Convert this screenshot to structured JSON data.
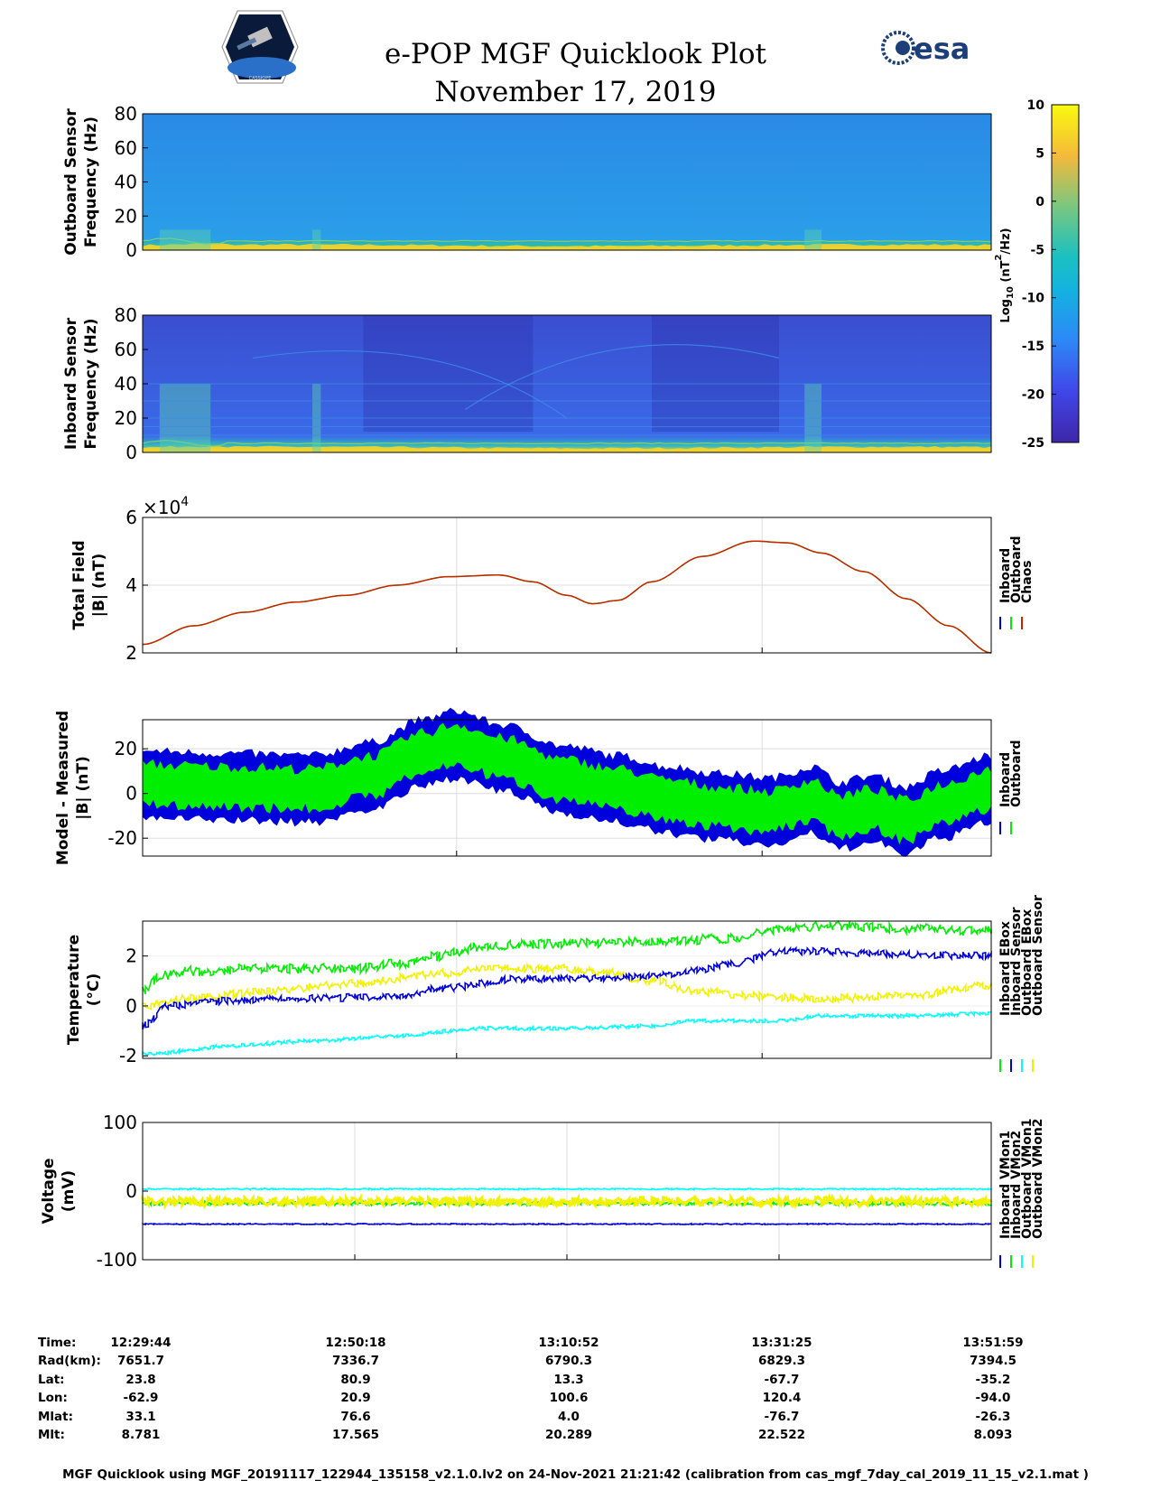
{
  "header": {
    "title": "e-POP MGF Quicklook Plot",
    "date": "November 17, 2019",
    "mission_logo": "CASSIOPE",
    "agency_logo": "esa"
  },
  "colors": {
    "inboard": "#0000dd",
    "outboard": "#00ee00",
    "chaos": "#cc2200",
    "yellow": "#f2f200",
    "cyan": "#00ffff"
  },
  "chart_data": [
    {
      "type": "heatmap",
      "name": "outboard-spectrogram",
      "ylabel": [
        "Outboard Sensor",
        "Frequency (Hz)"
      ],
      "ylim": [
        0,
        80
      ],
      "yticks": [
        "0",
        "20",
        "40",
        "60",
        "80"
      ]
    },
    {
      "type": "heatmap",
      "name": "inboard-spectrogram",
      "ylabel": [
        "Inboard Sensor",
        "Frequency (Hz)"
      ],
      "ylim": [
        0,
        80
      ],
      "yticks": [
        "0",
        "20",
        "40",
        "60",
        "80"
      ]
    },
    {
      "type": "colorbar",
      "label": "Log10 (nT^2/Hz)",
      "label_parts": [
        "Log",
        "10",
        " (nT",
        "2",
        "/Hz)"
      ],
      "ylim": [
        -25,
        10
      ],
      "ticks": [
        "10",
        "5",
        "0",
        "-5",
        "-10",
        "-15",
        "-20",
        "-25"
      ],
      "tick_values": [
        10,
        5,
        0,
        -5,
        -10,
        -15,
        -20,
        -25
      ]
    },
    {
      "type": "line",
      "name": "total-field",
      "ylabel": [
        "Total Field",
        "|B| (nT)"
      ],
      "exponent": "×10",
      "exponent_power": "4",
      "ylim": [
        2,
        6
      ],
      "yticks": [
        "2",
        "4",
        "6"
      ],
      "ytick_values": [
        2,
        4,
        6
      ],
      "x": [
        0,
        0.06,
        0.12,
        0.18,
        0.24,
        0.3,
        0.36,
        0.42,
        0.46,
        0.5,
        0.53,
        0.56,
        0.6,
        0.66,
        0.72,
        0.76,
        0.8,
        0.85,
        0.9,
        0.95,
        1.0
      ],
      "y": [
        2.25,
        2.8,
        3.2,
        3.5,
        3.7,
        4.0,
        4.25,
        4.3,
        4.1,
        3.7,
        3.45,
        3.55,
        4.1,
        4.85,
        5.3,
        5.25,
        4.95,
        4.4,
        3.6,
        2.8,
        2.0
      ],
      "legend": [
        "Inboard",
        "Outboard",
        "Chaos"
      ]
    },
    {
      "type": "line",
      "name": "model-minus-measured",
      "ylabel": [
        "Model - Measured",
        "|B| (nT)"
      ],
      "ylim": [
        -28,
        33
      ],
      "yticks": [
        "-20",
        "0",
        "20"
      ],
      "ytick_values": [
        -20,
        0,
        20
      ],
      "x": [
        0,
        0.1,
        0.2,
        0.27,
        0.33,
        0.37,
        0.42,
        0.5,
        0.56,
        0.62,
        0.68,
        0.74,
        0.79,
        0.82,
        0.86,
        0.9,
        0.94,
        1.0
      ],
      "center": [
        4,
        3,
        2,
        8,
        18,
        22,
        16,
        6,
        2,
        -3,
        -6,
        -8,
        -3,
        -10,
        -7,
        -12,
        -5,
        2
      ],
      "outboard_halfwidth": 9,
      "inboard_halfwidth": 15,
      "legend": [
        "Inboard",
        "Outboard"
      ]
    },
    {
      "type": "line",
      "name": "temperature",
      "ylabel": [
        "Temperature",
        "(°C)"
      ],
      "ylim": [
        -2.1,
        3.4
      ],
      "yticks": [
        "-2",
        "0",
        "2"
      ],
      "ytick_values": [
        -2,
        0,
        2
      ],
      "series": [
        {
          "name": "Inboard EBox",
          "color": "#00ee00",
          "x": [
            0,
            0.02,
            0.06,
            0.15,
            0.25,
            0.3,
            0.35,
            0.4,
            0.5,
            0.6,
            0.7,
            0.72,
            0.75,
            0.8,
            0.9,
            1.0
          ],
          "y": [
            0.6,
            1.2,
            1.4,
            1.5,
            1.5,
            1.7,
            2.0,
            2.4,
            2.5,
            2.6,
            2.7,
            2.9,
            3.1,
            3.2,
            3.1,
            3.0
          ]
        },
        {
          "name": "Inboard Sensor",
          "color": "#0000dd",
          "x": [
            0,
            0.03,
            0.1,
            0.2,
            0.3,
            0.35,
            0.45,
            0.55,
            0.6,
            0.65,
            0.7,
            0.75,
            1.0
          ],
          "y": [
            -0.8,
            0.0,
            0.2,
            0.3,
            0.4,
            0.7,
            1.1,
            1.1,
            1.2,
            1.4,
            1.7,
            2.2,
            2.0
          ]
        },
        {
          "name": "Outboard EBox",
          "color": "#00ffff",
          "x": [
            0,
            0.02,
            0.05,
            0.1,
            0.2,
            0.3,
            0.37,
            0.4,
            0.5,
            0.6,
            0.65,
            0.75,
            0.8,
            0.9,
            1.0
          ],
          "y": [
            -1.9,
            -1.9,
            -1.8,
            -1.6,
            -1.4,
            -1.2,
            -1.0,
            -0.9,
            -0.9,
            -0.8,
            -0.6,
            -0.6,
            -0.4,
            -0.4,
            -0.3
          ]
        },
        {
          "name": "Outboard Sensor",
          "color": "#f2f200",
          "x": [
            0,
            0.05,
            0.15,
            0.25,
            0.35,
            0.4,
            0.5,
            0.55,
            0.6,
            0.65,
            0.72,
            0.8,
            0.9,
            1.0
          ],
          "y": [
            0.0,
            0.3,
            0.6,
            0.9,
            1.3,
            1.5,
            1.5,
            1.3,
            1.0,
            0.6,
            0.4,
            0.3,
            0.4,
            0.8
          ]
        }
      ]
    },
    {
      "type": "line",
      "name": "voltage",
      "ylabel": [
        "Voltage",
        "(mV)"
      ],
      "ylim": [
        -100,
        100
      ],
      "yticks": [
        "-100",
        "0",
        "100"
      ],
      "ytick_values": [
        -100,
        0,
        100
      ],
      "series": [
        {
          "name": "Inboard VMon1",
          "color": "#0000dd",
          "x": [
            0,
            1
          ],
          "y": [
            -48,
            -48
          ]
        },
        {
          "name": "Inboard VMon2",
          "color": "#00ee00",
          "x": [
            0,
            1
          ],
          "y": [
            -18,
            -18
          ]
        },
        {
          "name": "Outboard VMon1",
          "color": "#00ffff",
          "x": [
            0,
            1
          ],
          "y": [
            3,
            3
          ]
        },
        {
          "name": "Outboard VMon2",
          "color": "#f2f200",
          "x": [
            0,
            1
          ],
          "y": [
            -15,
            -15
          ]
        }
      ]
    }
  ],
  "ephemeris": {
    "labels": [
      "Time:",
      "Rad(km):",
      "Lat:",
      "Lon:",
      "Mlat:",
      "Mlt:"
    ],
    "columns": [
      [
        "12:29:44",
        "7651.7",
        "23.8",
        "-62.9",
        "33.1",
        "8.781"
      ],
      [
        "12:50:18",
        "7336.7",
        "80.9",
        "20.9",
        "76.6",
        "17.565"
      ],
      [
        "13:10:52",
        "6790.3",
        "13.3",
        "100.6",
        "4.0",
        "20.289"
      ],
      [
        "13:31:25",
        "6829.3",
        "-67.7",
        "120.4",
        "-76.7",
        "22.522"
      ],
      [
        "13:51:59",
        "7394.5",
        "-35.2",
        "-94.0",
        "-26.3",
        "8.093"
      ]
    ]
  },
  "footer": "MGF Quicklook using MGF_20191117_122944_135158_v2.1.0.lv2 on 24-Nov-2021 21:21:42 (calibration from cas_mgf_7day_cal_2019_11_15_v2.1.mat )"
}
